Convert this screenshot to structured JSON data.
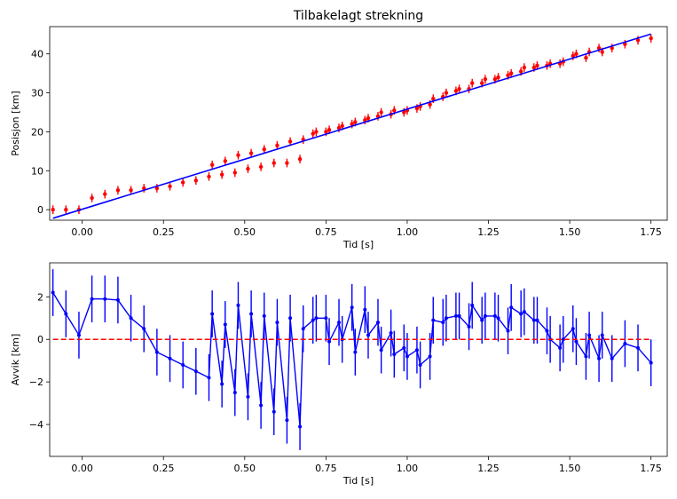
{
  "chart_data": [
    {
      "type": "scatter",
      "title": "Tilbakelagt strekning",
      "xlabel": "Tid [s]",
      "ylabel": "Posisjon [km]",
      "xlim": [
        -0.1,
        1.8
      ],
      "ylim": [
        -2.7,
        47
      ],
      "xticks": [
        "0.00",
        "0.25",
        "0.50",
        "0.75",
        "1.00",
        "1.25",
        "1.50",
        "1.75"
      ],
      "xtick_values": [
        0,
        0.25,
        0.5,
        0.75,
        1.0,
        1.25,
        1.5,
        1.75
      ],
      "yticks": [
        "0",
        "10",
        "20",
        "30",
        "40"
      ],
      "ytick_values": [
        0,
        10,
        20,
        30,
        40
      ],
      "grid": false,
      "series": [
        {
          "kind": "errorbar",
          "color": "#ff0000",
          "x": [
            -0.09,
            -0.05,
            -0.01,
            0.03,
            0.07,
            0.11,
            0.15,
            0.19,
            0.23,
            0.27,
            0.31,
            0.35,
            0.39,
            0.4,
            0.43,
            0.44,
            0.47,
            0.48,
            0.51,
            0.52,
            0.55,
            0.56,
            0.59,
            0.6,
            0.63,
            0.64,
            0.67,
            0.68,
            0.71,
            0.72,
            0.75,
            0.76,
            0.79,
            0.8,
            0.83,
            0.84,
            0.87,
            0.88,
            0.91,
            0.92,
            0.95,
            0.96,
            0.99,
            1.0,
            1.03,
            1.04,
            1.07,
            1.08,
            1.11,
            1.12,
            1.15,
            1.16,
            1.19,
            1.2,
            1.23,
            1.24,
            1.27,
            1.28,
            1.31,
            1.32,
            1.35,
            1.36,
            1.39,
            1.4,
            1.43,
            1.44,
            1.47,
            1.48,
            1.51,
            1.52,
            1.55,
            1.56,
            1.59,
            1.6,
            1.63,
            1.67,
            1.71,
            1.75
          ],
          "y": [
            0.0,
            0.0,
            0.0,
            3.0,
            4.0,
            5.0,
            5.0,
            5.5,
            5.5,
            6.0,
            7.0,
            7.5,
            8.5,
            11.5,
            9.0,
            12.5,
            9.5,
            14.0,
            10.5,
            14.5,
            11.0,
            15.5,
            12.0,
            16.5,
            12.0,
            17.5,
            13.0,
            18.0,
            19.5,
            20.0,
            20.0,
            20.5,
            21.0,
            21.5,
            22.0,
            22.5,
            23.0,
            23.5,
            24.0,
            25.0,
            24.5,
            25.5,
            25.0,
            25.5,
            26.0,
            26.5,
            27.0,
            28.5,
            29.0,
            30.0,
            30.5,
            31.0,
            31.0,
            32.5,
            32.5,
            33.5,
            33.5,
            34.0,
            34.5,
            35.0,
            35.5,
            36.5,
            36.5,
            37.0,
            37.0,
            37.5,
            37.5,
            38.0,
            39.5,
            40.0,
            39.0,
            40.5,
            41.5,
            40.5,
            41.5,
            42.5,
            43.5,
            44.0
          ],
          "yerr": 1.1
        },
        {
          "kind": "line",
          "color": "#0000ff",
          "x": [
            -0.09,
            1.75
          ],
          "y": [
            -2.2,
            45.1
          ]
        }
      ]
    },
    {
      "type": "line",
      "title": "",
      "xlabel": "Tid [s]",
      "ylabel": "Avvik [km]",
      "xlim": [
        -0.1,
        1.8
      ],
      "ylim": [
        -5.5,
        3.6
      ],
      "xticks": [
        "0.00",
        "0.25",
        "0.50",
        "0.75",
        "1.00",
        "1.25",
        "1.50",
        "1.75"
      ],
      "xtick_values": [
        0,
        0.25,
        0.5,
        0.75,
        1.0,
        1.25,
        1.5,
        1.75
      ],
      "yticks": [
        "−4",
        "−2",
        "0",
        "2"
      ],
      "ytick_values": [
        -4,
        -2,
        0,
        2
      ],
      "grid": false,
      "series": [
        {
          "kind": "errorbar-line",
          "color": "#0000ff",
          "x": [
            -0.09,
            -0.05,
            -0.01,
            0.03,
            0.07,
            0.11,
            0.15,
            0.19,
            0.23,
            0.27,
            0.31,
            0.35,
            0.39,
            0.4,
            0.43,
            0.44,
            0.47,
            0.48,
            0.51,
            0.52,
            0.55,
            0.56,
            0.59,
            0.6,
            0.63,
            0.64,
            0.67,
            0.68,
            0.71,
            0.72,
            0.75,
            0.76,
            0.79,
            0.8,
            0.83,
            0.84,
            0.87,
            0.88,
            0.91,
            0.92,
            0.95,
            0.96,
            0.99,
            1.0,
            1.03,
            1.04,
            1.07,
            1.08,
            1.11,
            1.12,
            1.15,
            1.16,
            1.19,
            1.2,
            1.23,
            1.24,
            1.27,
            1.28,
            1.31,
            1.32,
            1.35,
            1.36,
            1.39,
            1.4,
            1.43,
            1.44,
            1.47,
            1.48,
            1.51,
            1.52,
            1.55,
            1.56,
            1.59,
            1.6,
            1.63,
            1.67,
            1.71,
            1.75
          ],
          "y": [
            2.2,
            1.2,
            0.2,
            1.9,
            1.9,
            1.85,
            1.0,
            0.5,
            -0.6,
            -0.9,
            -1.2,
            -1.5,
            -1.8,
            1.2,
            -2.1,
            0.7,
            -2.5,
            1.6,
            -2.7,
            1.2,
            -3.1,
            1.1,
            -3.4,
            0.8,
            -3.8,
            1.0,
            -4.1,
            0.5,
            0.9,
            1.0,
            1.0,
            -0.1,
            0.8,
            0.0,
            1.5,
            -0.6,
            1.4,
            0.2,
            0.8,
            -0.5,
            0.3,
            -0.7,
            -0.4,
            -0.8,
            -0.5,
            -1.2,
            -0.8,
            0.9,
            0.8,
            1.0,
            1.1,
            1.1,
            0.6,
            1.6,
            0.9,
            1.1,
            1.1,
            1.0,
            0.4,
            1.5,
            1.2,
            1.3,
            0.9,
            0.9,
            0.4,
            0.0,
            -0.4,
            0.0,
            0.5,
            -0.1,
            -0.8,
            0.2,
            -0.9,
            0.2,
            -0.9,
            -0.2,
            -0.4,
            -1.1
          ],
          "yerr": 1.1
        },
        {
          "kind": "dashed-line",
          "color": "#ff0000",
          "x": [
            -0.09,
            1.75
          ],
          "y": [
            0,
            0
          ]
        }
      ]
    }
  ]
}
